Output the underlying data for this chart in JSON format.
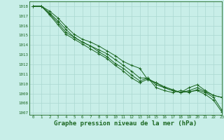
{
  "background_color": "#c8eee8",
  "grid_color": "#aad8d0",
  "line_color": "#1a6620",
  "marker_color": "#1a6620",
  "xlabel": "Graphe pression niveau de la mer (hPa)",
  "xlabel_fontsize": 6.5,
  "xlim": [
    -0.5,
    23
  ],
  "ylim": [
    1006.8,
    1018.5
  ],
  "yticks": [
    1007,
    1008,
    1009,
    1010,
    1011,
    1012,
    1013,
    1014,
    1015,
    1016,
    1017,
    1018
  ],
  "xticks": [
    0,
    1,
    2,
    3,
    4,
    5,
    6,
    7,
    8,
    9,
    10,
    11,
    12,
    13,
    14,
    15,
    16,
    17,
    18,
    19,
    20,
    21,
    22,
    23
  ],
  "lines": [
    [
      1018.0,
      1018.0,
      1017.5,
      1016.8,
      1015.9,
      1015.1,
      1014.6,
      1014.3,
      1013.9,
      1013.4,
      1012.9,
      1012.3,
      1011.9,
      1011.6,
      1010.4,
      1010.1,
      1009.6,
      1009.3,
      1009.1,
      1009.3,
      1009.6,
      1009.2,
      1008.8,
      1008.6
    ],
    [
      1018.0,
      1018.0,
      1017.3,
      1016.5,
      1015.6,
      1014.8,
      1014.3,
      1013.9,
      1013.5,
      1013.1,
      1012.5,
      1011.9,
      1011.3,
      1010.6,
      1010.6,
      1009.9,
      1009.6,
      1009.3,
      1009.1,
      1009.6,
      1009.9,
      1009.3,
      1008.8,
      1008.6
    ],
    [
      1018.0,
      1018.0,
      1017.2,
      1016.3,
      1015.3,
      1014.8,
      1014.3,
      1013.9,
      1013.3,
      1012.8,
      1012.1,
      1011.6,
      1010.9,
      1010.3,
      1010.6,
      1009.6,
      1009.3,
      1009.1,
      1009.3,
      1009.1,
      1009.4,
      1009.1,
      1008.6,
      1007.3
    ],
    [
      1018.0,
      1018.0,
      1017.1,
      1016.1,
      1015.1,
      1014.6,
      1014.1,
      1013.6,
      1013.1,
      1012.6,
      1011.9,
      1011.3,
      1010.6,
      1010.1,
      1010.5,
      1010.1,
      1009.7,
      1009.4,
      1009.1,
      1009.2,
      1009.3,
      1008.9,
      1008.3,
      1007.1
    ]
  ]
}
